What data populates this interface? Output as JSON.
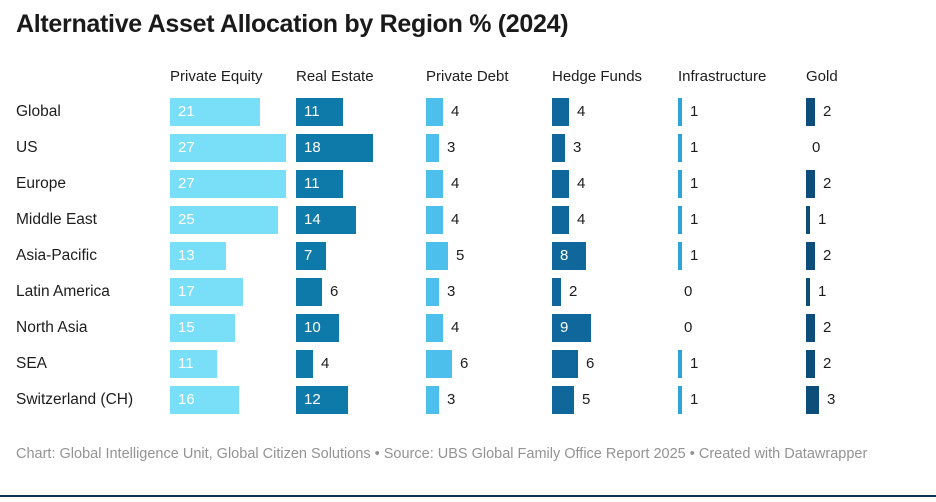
{
  "header": {
    "title": "Alternative Asset Allocation by Region % (2024)"
  },
  "chart_data": {
    "type": "bar",
    "orientation": "horizontal",
    "unit": "%",
    "title": "Alternative Asset Allocation by Region % (2024)",
    "categories": [
      "Global",
      "US",
      "Europe",
      "Middle East",
      "Asia-Pacific",
      "Latin America",
      "North Asia",
      "SEA",
      "Switzerland (CH)"
    ],
    "series": [
      {
        "name": "Private Equity",
        "color": "#79dff8",
        "values": [
          21,
          27,
          27,
          25,
          13,
          17,
          15,
          11,
          16
        ]
      },
      {
        "name": "Real Estate",
        "color": "#0e7aa9",
        "values": [
          11,
          18,
          11,
          14,
          7,
          6,
          10,
          4,
          12
        ]
      },
      {
        "name": "Private Debt",
        "color": "#4cbfec",
        "values": [
          4,
          3,
          4,
          4,
          5,
          3,
          4,
          6,
          3
        ]
      },
      {
        "name": "Hedge Funds",
        "color": "#0f679b",
        "values": [
          4,
          3,
          4,
          4,
          8,
          2,
          9,
          6,
          5
        ]
      },
      {
        "name": "Infrastructure",
        "color": "#2fa4da",
        "values": [
          1,
          1,
          1,
          1,
          1,
          0,
          0,
          1,
          1
        ]
      },
      {
        "name": "Gold",
        "color": "#0d4d7a",
        "values": [
          2,
          0,
          2,
          1,
          2,
          1,
          2,
          2,
          3
        ]
      }
    ],
    "xlim": [
      0,
      29
    ],
    "grid": false,
    "legend_position": "column-headers",
    "value_labels": "shown-on-every-bar"
  },
  "footer": {
    "attribution": "Chart: Global Intelligence Unit, Global Citizen Solutions • Source: UBS Global Family Office Report 2025 • Created with Datawrapper"
  }
}
